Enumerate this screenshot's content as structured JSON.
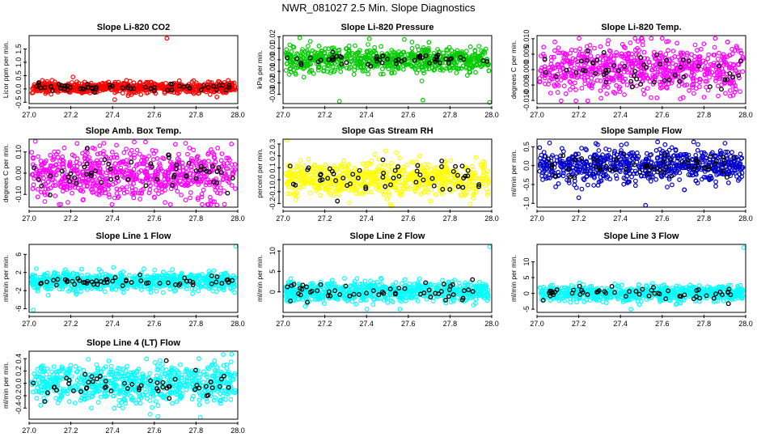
{
  "figure_title": "NWR_081027  2.5 Min. Slope Diagnostics",
  "chart_data": [
    {
      "type": "scatter",
      "title": "Slope Li-820 CO2",
      "ylabel": "Licor ppm per min.",
      "color": "#ff0000",
      "xlim": [
        27.0,
        28.0
      ],
      "ylim": [
        -0.55,
        2.0
      ],
      "xticks": [
        "27.0",
        "27.2",
        "27.4",
        "27.6",
        "27.8",
        "28.0"
      ],
      "yticks": [
        {
          "v": -0.5,
          "t": "-0.5"
        },
        {
          "v": 0.0,
          "t": "0.0"
        },
        {
          "v": 0.5,
          "t": "0.5"
        },
        {
          "v": 1.0,
          "t": "1.0"
        },
        {
          "v": 1.5,
          "t": "1.5"
        }
      ],
      "center": 0.05,
      "spread": 0.1,
      "black_spread": 0.09,
      "outliers": [
        [
          27.66,
          1.9
        ],
        [
          27.41,
          -0.4
        ],
        [
          27.21,
          0.45
        ],
        [
          27.9,
          -0.3
        ]
      ]
    },
    {
      "type": "scatter",
      "title": "Slope Li-820 Pressure",
      "ylabel": "kPa per min.",
      "color": "#00cc00",
      "xlim": [
        27.0,
        28.0
      ],
      "ylim": [
        -0.038,
        0.021
      ],
      "xticks": [
        "27.0",
        "27.2",
        "27.4",
        "27.6",
        "27.8",
        "28.0"
      ],
      "yticks": [
        {
          "v": -0.03,
          "t": "-0.03"
        },
        {
          "v": -0.02,
          "t": "-0.02"
        },
        {
          "v": -0.01,
          "t": "-0.01"
        },
        {
          "v": 0.0,
          "t": "0.00"
        },
        {
          "v": 0.01,
          "t": "0.01"
        },
        {
          "v": 0.02,
          "t": "0.02"
        }
      ],
      "center": 0.0,
      "spread": 0.0055,
      "black_spread": 0.0025,
      "outliers": [
        [
          27.27,
          -0.036
        ],
        [
          27.67,
          -0.035
        ],
        [
          27.99,
          -0.037
        ],
        [
          27.08,
          0.019
        ]
      ]
    },
    {
      "type": "scatter",
      "title": "Slope Li-820 Temp.",
      "ylabel": "degrees C per min.",
      "color": "#ff00ff",
      "xlim": [
        27.0,
        28.0
      ],
      "ylim": [
        -0.011,
        0.011
      ],
      "xticks": [
        "27.0",
        "27.2",
        "27.4",
        "27.6",
        "27.8",
        "28.0"
      ],
      "yticks": [
        {
          "v": -0.01,
          "t": "-0.010"
        },
        {
          "v": -0.005,
          "t": "-0.005"
        },
        {
          "v": 0.0,
          "t": "0.000"
        },
        {
          "v": 0.005,
          "t": "0.005"
        },
        {
          "v": 0.01,
          "t": "0.010"
        }
      ],
      "center": 0.0,
      "spread": 0.0042,
      "black_spread": 0.003,
      "outliers": [
        [
          27.62,
          0.009
        ],
        [
          27.7,
          -0.009
        ]
      ]
    },
    {
      "type": "scatter",
      "title": "Slope Amb. Box Temp.",
      "ylabel": "degrees C per min.",
      "color": "#ff00ff",
      "xlim": [
        27.0,
        28.0
      ],
      "ylim": [
        -0.16,
        0.16
      ],
      "xticks": [
        "27.0",
        "27.2",
        "27.4",
        "27.6",
        "27.8",
        "28.0"
      ],
      "yticks": [
        {
          "v": -0.1,
          "t": "-0.10"
        },
        {
          "v": 0.0,
          "t": "0.00"
        },
        {
          "v": 0.1,
          "t": "0.10"
        }
      ],
      "center": 0.0,
      "spread": 0.06,
      "black_spread": 0.045,
      "outliers": [
        [
          27.03,
          0.15
        ],
        [
          27.9,
          -0.15
        ],
        [
          27.23,
          0.14
        ]
      ]
    },
    {
      "type": "scatter",
      "title": "Slope Gas Stream RH",
      "ylabel": "percent per min.",
      "color": "#ffff00",
      "xlim": [
        27.0,
        28.0
      ],
      "ylim": [
        -0.23,
        0.34
      ],
      "xticks": [
        "27.0",
        "27.2",
        "27.4",
        "27.6",
        "27.8",
        "28.0"
      ],
      "yticks": [
        {
          "v": -0.2,
          "t": "-0.2"
        },
        {
          "v": -0.1,
          "t": "-0.1"
        },
        {
          "v": 0.0,
          "t": "0.0"
        },
        {
          "v": 0.1,
          "t": "0.1"
        },
        {
          "v": 0.2,
          "t": "0.2"
        },
        {
          "v": 0.3,
          "t": "0.3"
        }
      ],
      "center": 0.01,
      "spread": 0.075,
      "black_spread": 0.06,
      "outliers": [
        [
          27.02,
          0.33
        ],
        [
          27.52,
          -0.22
        ]
      ]
    },
    {
      "type": "scatter",
      "title": "Slope Sample Flow",
      "ylabel": "ml/min per min.",
      "color": "#0000cc",
      "xlim": [
        27.0,
        28.0
      ],
      "ylim": [
        -1.1,
        0.7
      ],
      "xticks": [
        "27.0",
        "27.2",
        "27.4",
        "27.6",
        "27.8",
        "28.0"
      ],
      "yticks": [
        {
          "v": -1.0,
          "t": "-1.0"
        },
        {
          "v": -0.5,
          "t": "-0.5"
        },
        {
          "v": 0.0,
          "t": "0.0"
        },
        {
          "v": 0.5,
          "t": "0.5"
        }
      ],
      "center": 0.0,
      "spread": 0.22,
      "black_spread": 0.15,
      "outliers": [
        [
          27.06,
          0.6
        ],
        [
          27.52,
          -1.05
        ],
        [
          27.2,
          -0.85
        ]
      ]
    },
    {
      "type": "scatter",
      "title": "Slope Line 1 Flow",
      "ylabel": "ml/min per min.",
      "color": "#00ffff",
      "xlim": [
        27.0,
        28.0
      ],
      "ylim": [
        -6.8,
        8.2
      ],
      "xticks": [
        "27.0",
        "27.2",
        "27.4",
        "27.6",
        "27.8",
        "28.0"
      ],
      "yticks": [
        {
          "v": -6,
          "t": "-6"
        },
        {
          "v": -2,
          "t": "-2"
        },
        {
          "v": 2,
          "t": "2"
        },
        {
          "v": 6,
          "t": "6"
        }
      ],
      "center": 0.0,
      "spread": 1.0,
      "black_spread": 0.55,
      "outliers": [
        [
          27.99,
          7.8
        ],
        [
          27.02,
          -6.3
        ],
        [
          27.55,
          2.8
        ]
      ]
    },
    {
      "type": "scatter",
      "title": "Slope Line 2 Flow",
      "ylabel": "ml/min per min.",
      "color": "#00ffff",
      "xlim": [
        27.0,
        28.0
      ],
      "ylim": [
        -5.0,
        11.6
      ],
      "xticks": [
        "27.0",
        "27.2",
        "27.4",
        "27.6",
        "27.8",
        "28.0"
      ],
      "yticks": [
        {
          "v": 0,
          "t": "0"
        },
        {
          "v": 5,
          "t": "5"
        },
        {
          "v": 10,
          "t": "10"
        }
      ],
      "center": 0.0,
      "spread": 1.2,
      "black_spread": 1.1,
      "outliers": [
        [
          27.99,
          11.0
        ],
        [
          27.56,
          -4.2
        ]
      ]
    },
    {
      "type": "scatter",
      "title": "Slope Line 3 Flow",
      "ylabel": "ml/min per min.",
      "color": "#00ffff",
      "xlim": [
        27.0,
        28.0
      ],
      "ylim": [
        -6.0,
        15.5
      ],
      "xticks": [
        "27.0",
        "27.2",
        "27.4",
        "27.6",
        "27.8",
        "28.0"
      ],
      "yticks": [
        {
          "v": -5,
          "t": "-5"
        },
        {
          "v": 0,
          "t": "0"
        },
        {
          "v": 5,
          "t": "5"
        },
        {
          "v": 10,
          "t": "10"
        }
      ],
      "center": 0.0,
      "spread": 1.2,
      "black_spread": 1.1,
      "outliers": [
        [
          27.99,
          14.5
        ],
        [
          27.45,
          -5.0
        ]
      ]
    },
    {
      "type": "scatter",
      "title": "Slope Line 4 (LT) Flow",
      "ylabel": "ml/min per min.",
      "color": "#00ffff",
      "xlim": [
        27.0,
        28.0
      ],
      "ylim": [
        -0.58,
        0.52
      ],
      "xticks": [
        "27.0",
        "27.2",
        "27.4",
        "27.6",
        "27.8",
        "28.0"
      ],
      "yticks": [
        {
          "v": -0.4,
          "t": "-0.4"
        },
        {
          "v": -0.2,
          "t": "-0.2"
        },
        {
          "v": 0.0,
          "t": "0.0"
        },
        {
          "v": 0.2,
          "t": "0.2"
        },
        {
          "v": 0.4,
          "t": "0.4"
        }
      ],
      "center": 0.0,
      "spread": 0.16,
      "black_spread": 0.13,
      "outliers": [
        [
          27.97,
          0.47
        ],
        [
          27.82,
          -0.55
        ],
        [
          27.58,
          -0.5
        ]
      ]
    }
  ]
}
